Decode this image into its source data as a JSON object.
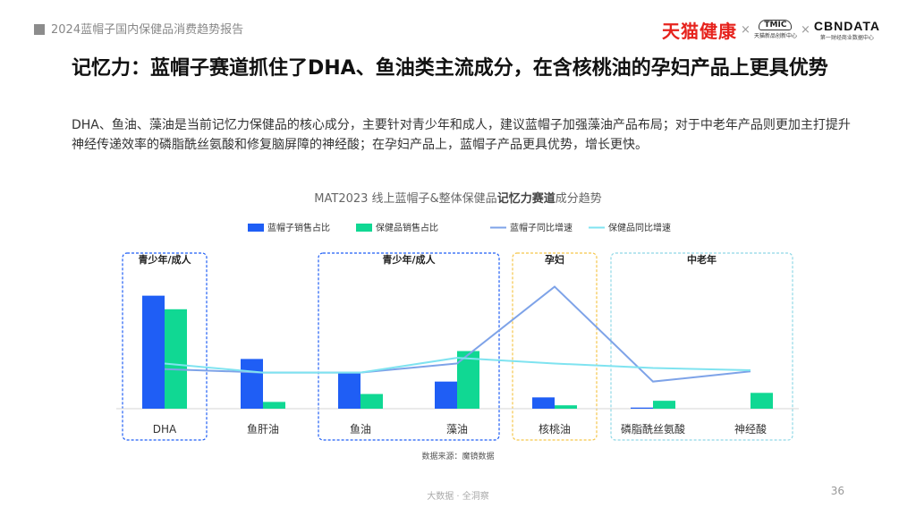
{
  "header": {
    "report_title": "2024蓝帽子国内保健品消费趋势报告",
    "logo_tmall": "天猫健康",
    "logo_tmic": "TMIC",
    "logo_tmic_sub": "天猫新品创新中心",
    "logo_cbn": "CBNDATA",
    "logo_cbn_sub": "第一财经商业数据中心",
    "separator": "×"
  },
  "title": "记忆力：蓝帽子赛道抓住了DHA、鱼油类主流成分，在含核桃油的孕妇产品上更具优势",
  "description": "DHA、鱼油、藻油是当前记忆力保健品的核心成分，主要针对青少年和成人，建议蓝帽子加强藻油产品布局；对于中老年产品则更加主打提升神经传递效率的磷脂酰丝氨酸和修复脑屏障的神经酸；在孕妇产品上，蓝帽子产品更具优势，增长更快。",
  "chart_data": {
    "type": "bar",
    "title_prefix": "MAT2023 线上蓝帽子&整体保健品",
    "title_bold": "记忆力赛道",
    "title_suffix": "成分趋势",
    "categories": [
      "DHA",
      "鱼肝油",
      "鱼油",
      "藻油",
      "核桃油",
      "磷脂酰丝氨酸",
      "神经酸"
    ],
    "series": [
      {
        "name": "蓝帽子销售占比",
        "kind": "bar",
        "color": "#1f5ef5",
        "values": [
          100,
          44,
          32,
          24,
          10,
          1,
          0
        ]
      },
      {
        "name": "保健品销售占比",
        "kind": "bar",
        "color": "#10d893",
        "values": [
          88,
          6,
          13,
          51,
          3,
          7,
          14
        ]
      },
      {
        "name": "蓝帽子同比增速",
        "kind": "line",
        "color": "#7ea3e8",
        "values": [
          35,
          32,
          32,
          40,
          108,
          24,
          33
        ]
      },
      {
        "name": "保健品同比增速",
        "kind": "line",
        "color": "#7fe3f0",
        "values": [
          40,
          32,
          32,
          45,
          40,
          36,
          34
        ]
      }
    ],
    "groups": [
      {
        "label": "青少年/成人",
        "color": "#1f5ef5"
      },
      {
        "label": "青少年/成人",
        "color": "#1f5ef5"
      },
      {
        "label": "孕妇",
        "color": "#f5c64a"
      },
      {
        "label": "中老年",
        "color": "#8fd8e6"
      }
    ],
    "grid": false,
    "legend": "top"
  },
  "source": "数据来源：魔镜数据",
  "footer": "大数据 · 全洞察",
  "page_number": "36"
}
